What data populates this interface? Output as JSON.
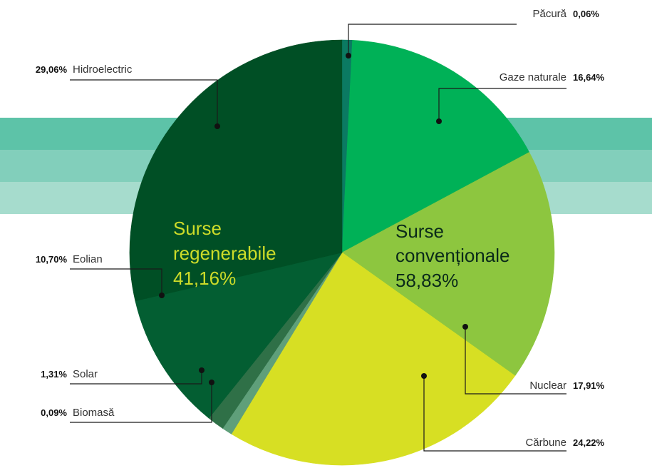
{
  "colors": {
    "band_top": "#5dc3a8",
    "band_mid": "#82cfbb",
    "band_bottom": "#a6dccd"
  },
  "chart_data": {
    "type": "pie",
    "slices": [
      {
        "label": "Păcură",
        "value_label": "0,06%",
        "value": 0.06,
        "color": "#0b7a62"
      },
      {
        "label": "Gaze naturale",
        "value_label": "16,64%",
        "value": 16.64,
        "color": "#00b157"
      },
      {
        "label": "Nuclear",
        "value_label": "17,91%",
        "value": 17.91,
        "color": "#8dc63f"
      },
      {
        "label": "Cărbune",
        "value_label": "24,22%",
        "value": 24.22,
        "color": "#d7df23"
      },
      {
        "label": "Biomasă",
        "value_label": "0,09%",
        "value": 0.09,
        "color": "#5f9f7a"
      },
      {
        "label": "Solar",
        "value_label": "1,31%",
        "value": 1.31,
        "color": "#2f7047"
      },
      {
        "label": "Eolian",
        "value_label": "10,70%",
        "value": 10.7,
        "color": "#035e32"
      },
      {
        "label": "Hidroelectric",
        "value_label": "29,06%",
        "value": 29.06,
        "color": "#004f25"
      }
    ],
    "groups": [
      {
        "line1": "Surse",
        "line2": "regenerabile",
        "line3": "41,16%",
        "color": "#cddc29"
      },
      {
        "line1": "Surse",
        "line2": "convenționale",
        "line3": "58,83%",
        "color": "#0a2a1a"
      }
    ]
  }
}
